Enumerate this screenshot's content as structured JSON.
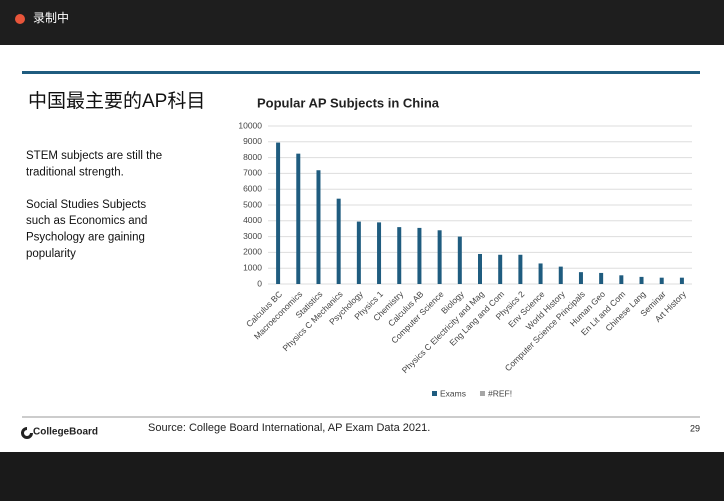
{
  "recording": "录制中",
  "slide": {
    "title": "中国最主要的AP科目",
    "body": [
      [
        "STEM subjects are still the",
        "traditional strength."
      ],
      [
        "Social Studies Subjects",
        "such as Economics and",
        "Psychology are gaining",
        "popularity"
      ]
    ],
    "logo": "CollegeBoard",
    "source": "Source: College Board International, AP Exam Data 2021.",
    "page": "29"
  },
  "chart_data": {
    "type": "bar",
    "title": "Popular AP Subjects in China",
    "categories": [
      "Calculus BC",
      "Macroeconomics",
      "Statistics",
      "Physics C Mechanics",
      "Psychology",
      "Physics 1",
      "Chemistry",
      "Calculus AB",
      "Computer Science",
      "Biology",
      "Physics C Electricity and Mag",
      "Eng Lang and Com",
      "Physics 2",
      "Env Science",
      "World History",
      "Computer Science Principals",
      "Human Geo",
      "En Lit and Com",
      "Chinese Lang",
      "Seminar",
      "Art History"
    ],
    "series": [
      {
        "name": "Exams",
        "color": "#1f5c7f",
        "values": [
          8950,
          8250,
          7200,
          5400,
          3950,
          3900,
          3600,
          3550,
          3400,
          3000,
          1900,
          1850,
          1850,
          1300,
          1100,
          750,
          700,
          550,
          450,
          400,
          400
        ]
      },
      {
        "name": "#REF!",
        "color": "#a6a6a6",
        "values": [
          null,
          null,
          null,
          null,
          null,
          null,
          null,
          null,
          null,
          null,
          null,
          null,
          null,
          null,
          null,
          null,
          null,
          null,
          null,
          null,
          null
        ]
      }
    ],
    "ylim": [
      0,
      10000
    ],
    "yticks": [
      0,
      1000,
      2000,
      3000,
      4000,
      5000,
      6000,
      7000,
      8000,
      9000,
      10000
    ],
    "grid": true,
    "legend": "bottom"
  }
}
